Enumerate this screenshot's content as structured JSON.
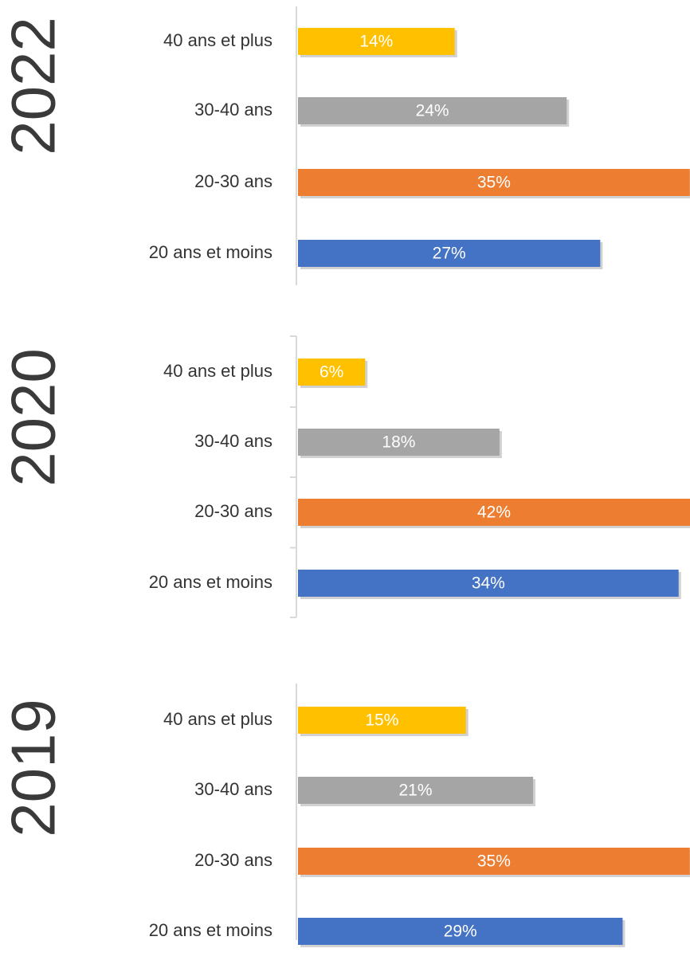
{
  "chart_data": [
    {
      "type": "bar",
      "orientation": "horizontal",
      "title": "2022",
      "categories": [
        "40 ans et plus",
        "30-40 ans",
        "20-30 ans",
        "20 ans et moins"
      ],
      "values": [
        14,
        24,
        35,
        27
      ],
      "value_labels": [
        "14%",
        "24%",
        "35%",
        "27%"
      ],
      "unit": "%",
      "grid": false,
      "legend": "none"
    },
    {
      "type": "bar",
      "orientation": "horizontal",
      "title": "2020",
      "categories": [
        "40 ans et plus",
        "30-40 ans",
        "20-30 ans",
        "20 ans et moins"
      ],
      "values": [
        6,
        18,
        42,
        34
      ],
      "value_labels": [
        "6%",
        "18%",
        "42%",
        "34%"
      ],
      "unit": "%",
      "grid": false,
      "legend": "none"
    },
    {
      "type": "bar",
      "orientation": "horizontal",
      "title": "2019",
      "categories": [
        "40 ans et plus",
        "30-40 ans",
        "20-30 ans",
        "20 ans et moins"
      ],
      "values": [
        15,
        21,
        35,
        29
      ],
      "value_labels": [
        "15%",
        "21%",
        "35%",
        "29%"
      ],
      "unit": "%",
      "grid": false,
      "legend": "none"
    }
  ],
  "colors": {
    "40 ans et plus": "#ffc000",
    "30-40 ans": "#a5a5a5",
    "20-30 ans": "#ed7d31",
    "20 ans et moins": "#4472c4",
    "axis": "#d9d9d9"
  }
}
